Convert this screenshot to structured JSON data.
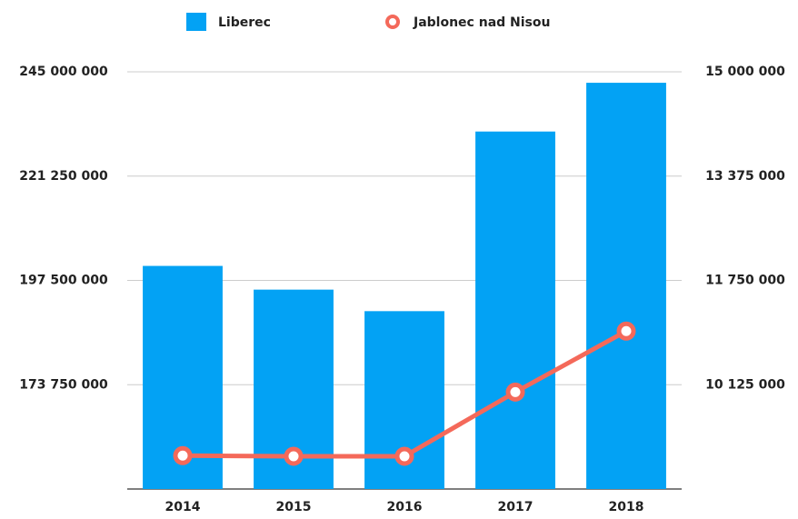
{
  "chart_data": {
    "type": "bar-line",
    "categories": [
      "2014",
      "2015",
      "2016",
      "2017",
      "2018"
    ],
    "series": [
      {
        "name": "Liberec",
        "color": "#03a2f4",
        "type": "bar",
        "values": [
          200800000,
          195400000,
          190500000,
          231400000,
          242500000
        ]
      },
      {
        "name": "Jablonec nad Nisou",
        "color": "#f4695a",
        "type": "line",
        "axis": "y2",
        "values": [
          9020000,
          9010000,
          9010000,
          10010000,
          10960000
        ]
      }
    ],
    "ylim": [
      150000000,
      245000000
    ],
    "yticks": [
      {
        "value": 173750000,
        "label": "173 750 000"
      },
      {
        "value": 197500000,
        "label": "197 500 000"
      },
      {
        "value": 221250000,
        "label": "221 250 000"
      },
      {
        "value": 245000000,
        "label": "245 000 000"
      }
    ],
    "y2lim": [
      8500000,
      15000000
    ],
    "y2ticks": [
      {
        "value": 10125000,
        "label": "10 125 000"
      },
      {
        "value": 11750000,
        "label": "11 750 000"
      },
      {
        "value": 13375000,
        "label": "13 375 000"
      },
      {
        "value": 15000000,
        "label": "15 000 000"
      }
    ],
    "grid": true,
    "legend": "top"
  }
}
